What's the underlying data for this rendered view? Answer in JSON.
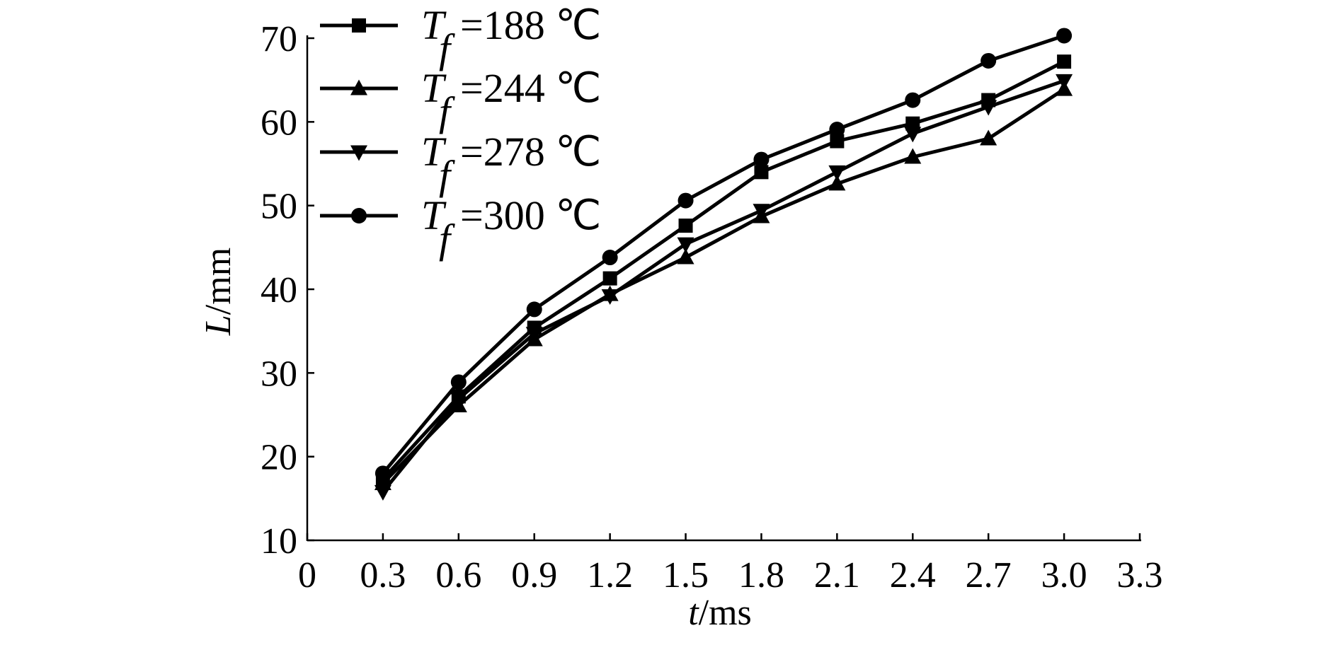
{
  "chart_data": {
    "type": "line",
    "xlabel_var": "t",
    "xlabel_unit": "/ms",
    "ylabel_var": "L",
    "ylabel_unit": "/mm",
    "xlim": [
      0,
      3.3
    ],
    "ylim": [
      10,
      70
    ],
    "x_ticks": [
      "0",
      "0.3",
      "0.6",
      "0.9",
      "1.2",
      "1.5",
      "1.8",
      "2.1",
      "2.4",
      "2.7",
      "3.0",
      "3.3"
    ],
    "y_ticks": [
      "10",
      "20",
      "30",
      "40",
      "50",
      "60",
      "70"
    ],
    "grid": false,
    "legend_position": "top-left",
    "x": [
      0.3,
      0.6,
      0.9,
      1.2,
      1.5,
      1.8,
      2.1,
      2.4,
      2.7,
      3.0
    ],
    "series": [
      {
        "name": "Tf=188 ℃",
        "legend_var": "T",
        "legend_sub": "f",
        "legend_value": "=188 ℃",
        "marker": "square",
        "values": [
          17.3,
          27.2,
          35.4,
          41.3,
          47.6,
          54.0,
          57.7,
          59.8,
          62.6,
          67.2
        ]
      },
      {
        "name": "Tf=244 ℃",
        "legend_var": "T",
        "legend_sub": "f",
        "legend_value": "=244 ℃",
        "marker": "triangle-up",
        "values": [
          16.8,
          26.1,
          34.0,
          39.4,
          43.8,
          48.7,
          52.6,
          55.8,
          58.0,
          63.9
        ]
      },
      {
        "name": "Tf=278 ℃",
        "legend_var": "T",
        "legend_sub": "f",
        "legend_value": "=278 ℃",
        "marker": "triangle-down",
        "values": [
          15.8,
          26.9,
          34.7,
          39.2,
          45.4,
          49.4,
          54.0,
          58.6,
          61.8,
          64.9
        ]
      },
      {
        "name": "Tf=300 ℃",
        "legend_var": "T",
        "legend_sub": "f",
        "legend_value": "=300 ℃",
        "marker": "circle",
        "values": [
          18.0,
          28.9,
          37.6,
          43.8,
          50.6,
          55.5,
          59.1,
          62.6,
          67.3,
          70.3
        ]
      }
    ],
    "colors": {
      "line": "#000000",
      "background": "#ffffff"
    }
  }
}
